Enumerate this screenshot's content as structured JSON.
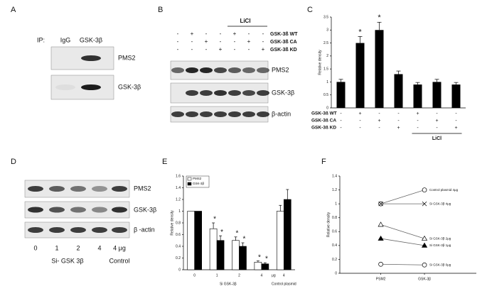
{
  "panels": {
    "A": {
      "label": "A",
      "ip": "IP:",
      "lanes": [
        "IgG",
        "GSK-3β"
      ],
      "blots": [
        "PMS2",
        "GSK-3β"
      ]
    },
    "B": {
      "label": "B",
      "group_label": "LiCl",
      "conditions": [
        {
          "label": "GSK-3ß WT",
          "signs": [
            "-",
            "+",
            "-",
            "-",
            "+",
            "-",
            "-"
          ]
        },
        {
          "label": "GSK-3ß CA",
          "signs": [
            "-",
            "-",
            "+",
            "-",
            "-",
            "+",
            "-"
          ]
        },
        {
          "label": "GSK-3ß KD",
          "signs": [
            "-",
            "-",
            "-",
            "+",
            "-",
            "-",
            "+"
          ]
        }
      ],
      "blots": [
        "PMS2",
        "GSK-3β",
        "β-actin"
      ]
    },
    "D": {
      "label": "D",
      "lanes": [
        "0",
        "1",
        "2",
        "4",
        "4 μg"
      ],
      "groups": [
        "Si- GSK 3β",
        "Control"
      ],
      "blots": [
        "PMS2",
        "GSK-3β",
        "β -actin"
      ]
    }
  },
  "chart_data": [
    {
      "type": "bar",
      "panel": "C",
      "ylabel": "Relative density",
      "values": [
        1.0,
        2.5,
        3.0,
        1.3,
        0.9,
        1.0,
        0.9
      ],
      "errors": [
        0.1,
        0.25,
        0.3,
        0.12,
        0.08,
        0.1,
        0.08
      ],
      "marks": [
        null,
        "*",
        "*",
        null,
        null,
        null,
        null
      ],
      "color": "#000000",
      "ylim": [
        0,
        3.5
      ],
      "yticks": [
        0,
        0.5,
        1,
        1.5,
        2,
        2.5,
        3,
        3.5
      ],
      "conditions": [
        {
          "label": "GSK-3ß WT",
          "signs": [
            "-",
            "+",
            "-",
            "-",
            "+",
            "-",
            "-"
          ]
        },
        {
          "label": "GSK-3ß CA",
          "signs": [
            "-",
            "-",
            "+",
            "-",
            "-",
            "+",
            "-"
          ]
        },
        {
          "label": "GSK-3ß KD",
          "signs": [
            "-",
            "-",
            "-",
            "+",
            "-",
            "-",
            "+"
          ]
        }
      ],
      "group_label": "LiCl"
    },
    {
      "type": "grouped-bar",
      "panel": "E",
      "ylabel": "Relative density",
      "categories": [
        "0",
        "1",
        "2",
        "4",
        "4"
      ],
      "x_unit": "μg",
      "groups": [
        "Si GSK-3β",
        "Control plasmid"
      ],
      "series": [
        {
          "name": "PMS2",
          "color": "#ffffff",
          "values": [
            1,
            0.7,
            0.5,
            0.13,
            1.0
          ],
          "errors": [
            0,
            0.1,
            0.06,
            0.02,
            0.1
          ],
          "marks": [
            null,
            "*",
            "*",
            "*",
            null
          ]
        },
        {
          "name": "GSK-3β",
          "color": "#000000",
          "values": [
            1,
            0.5,
            0.4,
            0.1,
            1.2
          ],
          "errors": [
            0,
            0.08,
            0.06,
            0.02,
            0.17
          ],
          "marks": [
            null,
            "*",
            "*",
            "*",
            null
          ]
        }
      ],
      "ylim": [
        0,
        1.6
      ],
      "yticks": [
        0,
        0.2,
        0.4,
        0.6,
        0.8,
        1,
        1.2,
        1.4,
        1.6
      ]
    },
    {
      "type": "line",
      "panel": "F",
      "ylabel": "Relative density",
      "categories": [
        "PSM2",
        "GSK-3β"
      ],
      "series": [
        {
          "name": "Control plasmid 4μg",
          "marker": "circle-open",
          "values": [
            1,
            1.2
          ]
        },
        {
          "name": "Si GSK-3β  4μg",
          "marker": "x",
          "values": [
            1,
            1
          ]
        },
        {
          "name": "Si GSK-3β  2μg",
          "marker": "triangle-open",
          "values": [
            0.7,
            0.5
          ]
        },
        {
          "name": "Si GSK-3β  1μg",
          "marker": "triangle",
          "values": [
            0.5,
            0.4
          ]
        },
        {
          "name": "Si GSK-3β  0μg",
          "marker": "circle-open",
          "values": [
            0.13,
            0.12
          ]
        }
      ],
      "ylim": [
        0,
        1.4
      ],
      "yticks": [
        0,
        0.2,
        0.4,
        0.6,
        0.8,
        1,
        1.2,
        1.4
      ]
    }
  ]
}
